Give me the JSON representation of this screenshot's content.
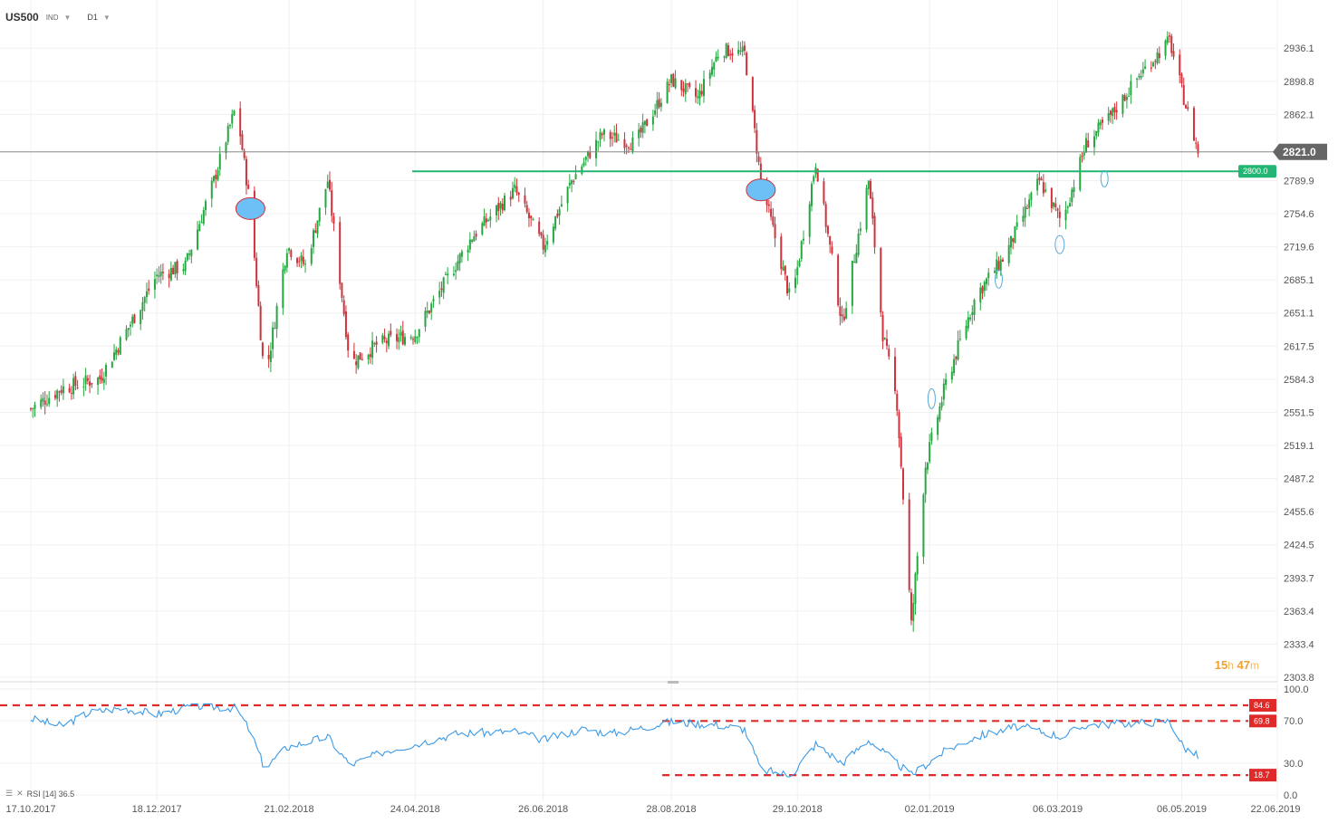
{
  "header": {
    "symbol": "US500",
    "class": "IND",
    "timeframe": "D1"
  },
  "timer": {
    "hours": "15",
    "h_unit": "h",
    "minutes": "47",
    "m_unit": "m"
  },
  "rsi_label": "RSI [14] 36.5",
  "colors": {
    "up": "#26a641",
    "down": "#d0313a",
    "support": "#22b573",
    "rsi": "#3a9ae8",
    "levels": "#e02a2a",
    "marker": "#6cc0f5"
  },
  "chart_data": [
    {
      "type": "candlestick",
      "x_ticks": [
        "17.10.2017",
        "18.12.2017",
        "21.02.2018",
        "24.04.2018",
        "26.06.2018",
        "28.08.2018",
        "29.10.2018",
        "02.01.2019",
        "06.03.2019",
        "06.05.2019",
        "22.06.2019"
      ],
      "y_ticks": [
        "2936.1",
        "2898.8",
        "2862.1",
        "2789.9",
        "2754.6",
        "2719.6",
        "2685.1",
        "2651.1",
        "2617.5",
        "2584.3",
        "2551.5",
        "2519.1",
        "2487.2",
        "2455.6",
        "2424.5",
        "2393.7",
        "2363.4",
        "2333.4",
        "2303.8"
      ],
      "ylim": [
        2303.8,
        2960
      ],
      "current_price": "2821.0",
      "support_level": "2800.0",
      "path": [
        [
          "2017-10-17",
          2555
        ],
        [
          "2017-11-01",
          2575
        ],
        [
          "2017-11-20",
          2585
        ],
        [
          "2017-12-05",
          2640
        ],
        [
          "2017-12-18",
          2690
        ],
        [
          "2018-01-01",
          2700
        ],
        [
          "2018-01-15",
          2790
        ],
        [
          "2018-01-26",
          2872
        ],
        [
          "2018-02-02",
          2760
        ],
        [
          "2018-02-09",
          2580
        ],
        [
          "2018-02-20",
          2720
        ],
        [
          "2018-03-01",
          2700
        ],
        [
          "2018-03-12",
          2790
        ],
        [
          "2018-03-23",
          2600
        ],
        [
          "2018-04-06",
          2620
        ],
        [
          "2018-04-24",
          2630
        ],
        [
          "2018-05-08",
          2680
        ],
        [
          "2018-05-22",
          2730
        ],
        [
          "2018-06-12",
          2780
        ],
        [
          "2018-06-26",
          2720
        ],
        [
          "2018-07-10",
          2790
        ],
        [
          "2018-07-25",
          2840
        ],
        [
          "2018-08-10",
          2830
        ],
        [
          "2018-08-28",
          2900
        ],
        [
          "2018-09-10",
          2880
        ],
        [
          "2018-09-21",
          2935
        ],
        [
          "2018-10-03",
          2930
        ],
        [
          "2018-10-11",
          2790
        ],
        [
          "2018-10-26",
          2660
        ],
        [
          "2018-11-07",
          2810
        ],
        [
          "2018-11-20",
          2640
        ],
        [
          "2018-12-03",
          2790
        ],
        [
          "2018-12-10",
          2630
        ],
        [
          "2018-12-17",
          2560
        ],
        [
          "2018-12-24",
          2350
        ],
        [
          "2018-12-31",
          2500
        ],
        [
          "2019-01-10",
          2580
        ],
        [
          "2019-01-25",
          2670
        ],
        [
          "2019-02-08",
          2710
        ],
        [
          "2019-02-25",
          2790
        ],
        [
          "2019-03-08",
          2745
        ],
        [
          "2019-03-20",
          2830
        ],
        [
          "2019-04-01",
          2860
        ],
        [
          "2019-04-15",
          2905
        ],
        [
          "2019-04-30",
          2945
        ],
        [
          "2019-05-07",
          2880
        ],
        [
          "2019-05-14",
          2821
        ]
      ]
    },
    {
      "type": "line",
      "name": "RSI [14]",
      "ylim": [
        0,
        100
      ],
      "y_ticks": [
        "100.0",
        "70.0",
        "30.0",
        "0.0"
      ],
      "levels": [
        "84.6",
        "69.8",
        "18.7"
      ],
      "last_value": "36.5",
      "path": [
        [
          "2017-10-17",
          72
        ],
        [
          "2017-11-01",
          65
        ],
        [
          "2017-11-15",
          78
        ],
        [
          "2017-12-01",
          82
        ],
        [
          "2017-12-18",
          76
        ],
        [
          "2018-01-05",
          84
        ],
        [
          "2018-01-26",
          82
        ],
        [
          "2018-02-02",
          60
        ],
        [
          "2018-02-09",
          25
        ],
        [
          "2018-02-20",
          45
        ],
        [
          "2018-03-12",
          55
        ],
        [
          "2018-03-23",
          28
        ],
        [
          "2018-04-10",
          42
        ],
        [
          "2018-04-24",
          48
        ],
        [
          "2018-05-15",
          58
        ],
        [
          "2018-06-12",
          60
        ],
        [
          "2018-06-26",
          52
        ],
        [
          "2018-07-15",
          62
        ],
        [
          "2018-07-30",
          58
        ],
        [
          "2018-08-28",
          69
        ],
        [
          "2018-09-21",
          66
        ],
        [
          "2018-10-03",
          62
        ],
        [
          "2018-10-11",
          24
        ],
        [
          "2018-10-26",
          18.7
        ],
        [
          "2018-11-07",
          48
        ],
        [
          "2018-11-20",
          30
        ],
        [
          "2018-12-03",
          52
        ],
        [
          "2018-12-24",
          18.7
        ],
        [
          "2019-01-10",
          42
        ],
        [
          "2019-01-25",
          55
        ],
        [
          "2019-02-15",
          65
        ],
        [
          "2019-03-08",
          55
        ],
        [
          "2019-03-20",
          66
        ],
        [
          "2019-04-15",
          68
        ],
        [
          "2019-04-30",
          69.8
        ],
        [
          "2019-05-07",
          45
        ],
        [
          "2019-05-14",
          36.5
        ]
      ]
    }
  ]
}
